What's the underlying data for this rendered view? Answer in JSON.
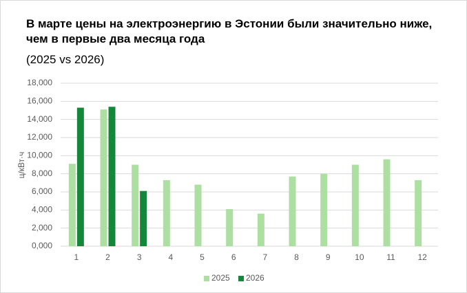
{
  "chart_data": {
    "type": "bar",
    "title": "В марте цены на электроэнергию в Эстонии были значительно ниже, чем в первые два месяца года",
    "subtitle": "(2025 vs 2026)",
    "y_label": "ц/кВт·ч",
    "categories": [
      "1",
      "2",
      "3",
      "4",
      "5",
      "6",
      "7",
      "8",
      "9",
      "10",
      "11",
      "12"
    ],
    "series": [
      {
        "name": "2025",
        "color": "#addfa2",
        "values": [
          9.1,
          15.1,
          9.0,
          7.3,
          6.8,
          4.1,
          3.6,
          7.7,
          8.0,
          9.0,
          9.6,
          7.3
        ]
      },
      {
        "name": "2026",
        "color": "#15873a",
        "values": [
          15.3,
          15.4,
          6.1,
          null,
          null,
          null,
          null,
          null,
          null,
          null,
          null,
          null
        ]
      }
    ],
    "ylim": [
      0,
      18
    ],
    "yticks": [
      {
        "value": 0,
        "label": "0,000"
      },
      {
        "value": 2,
        "label": "2,000"
      },
      {
        "value": 4,
        "label": "4,000"
      },
      {
        "value": 6,
        "label": "6,000"
      },
      {
        "value": 8,
        "label": "8,000"
      },
      {
        "value": 10,
        "label": "10,000"
      },
      {
        "value": 12,
        "label": "12,000"
      },
      {
        "value": 14,
        "label": "14,000"
      },
      {
        "value": 16,
        "label": "16,000"
      },
      {
        "value": 18,
        "label": "18,000"
      }
    ],
    "grid": true,
    "legend": "bottom"
  }
}
